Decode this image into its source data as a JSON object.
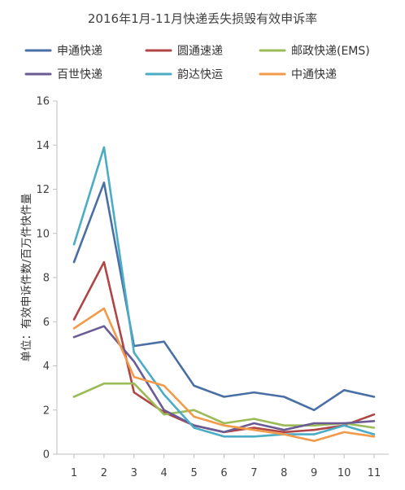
{
  "chart_data": {
    "type": "line",
    "title": "2016年1月-11月快递丢失损毁有效申诉率",
    "xlabel": "",
    "ylabel": "单位：有效申诉件数/百万件快件量",
    "x": [
      "1",
      "2",
      "3",
      "4",
      "5",
      "6",
      "7",
      "8",
      "9",
      "10",
      "11"
    ],
    "ylim": [
      0,
      16
    ],
    "yticks": [
      "0",
      "2",
      "4",
      "6",
      "8",
      "10",
      "12",
      "14",
      "16"
    ],
    "grid": false,
    "legend_position": "top",
    "series": [
      {
        "name": "申通快递",
        "color": "#4a6fa5",
        "values": [
          8.7,
          12.3,
          4.9,
          5.1,
          3.1,
          2.6,
          2.8,
          2.6,
          2.0,
          2.9,
          2.6
        ]
      },
      {
        "name": "圆通速递",
        "color": "#b04545",
        "values": [
          6.1,
          8.7,
          2.8,
          1.9,
          1.3,
          1.0,
          1.2,
          1.0,
          1.1,
          1.3,
          1.8
        ]
      },
      {
        "name": "邮政快递(EMS)",
        "color": "#9bbb59",
        "values": [
          2.6,
          3.2,
          3.2,
          1.8,
          2.0,
          1.4,
          1.6,
          1.3,
          1.3,
          1.4,
          1.2
        ]
      },
      {
        "name": "百世快递",
        "color": "#6b5b95",
        "values": [
          5.3,
          5.8,
          4.2,
          2.0,
          1.3,
          1.0,
          1.4,
          1.1,
          1.4,
          1.4,
          1.5
        ]
      },
      {
        "name": "韵达快运",
        "color": "#4bacc6",
        "values": [
          9.5,
          13.9,
          4.6,
          2.7,
          1.2,
          0.8,
          0.8,
          0.9,
          0.9,
          1.3,
          0.9
        ]
      },
      {
        "name": "中通快递",
        "color": "#f39a4a",
        "values": [
          5.7,
          6.6,
          3.5,
          3.1,
          1.7,
          1.3,
          1.1,
          0.9,
          0.6,
          1.0,
          0.8
        ]
      }
    ]
  }
}
